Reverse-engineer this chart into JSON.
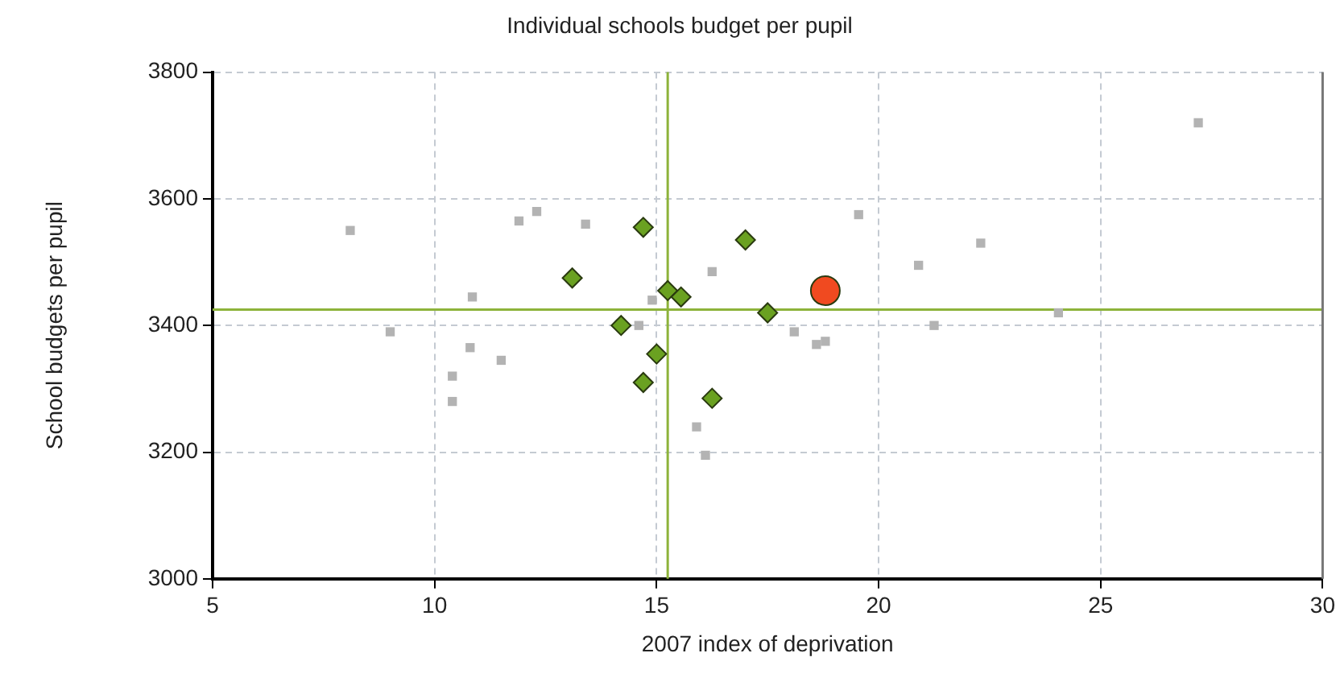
{
  "chart_data": {
    "type": "scatter",
    "title": "Individual schools budget per pupil",
    "xlabel": "2007 index of deprivation",
    "ylabel": "School budgets per pupil",
    "xlim": [
      5,
      30
    ],
    "xticks": [
      5,
      10,
      15,
      20,
      25,
      30
    ],
    "ylim": [
      3000,
      3800
    ],
    "yticks": [
      3000,
      3200,
      3400,
      3600,
      3800
    ],
    "grid": true,
    "legend": false,
    "series": [
      {
        "color": "#b3b3b3",
        "marker": "square",
        "x": [
          8.1,
          9.0,
          11.9,
          12.3,
          13.4,
          10.85,
          10.8,
          11.5,
          10.4,
          10.4,
          14.9,
          14.6,
          16.25,
          19.55,
          18.1,
          18.6,
          18.8,
          15.9,
          16.1,
          20.9,
          21.25,
          22.3,
          24.05,
          27.2
        ],
        "values": [
          3550,
          3390,
          3565,
          3580,
          3560,
          3445,
          3365,
          3345,
          3320,
          3280,
          3440,
          3400,
          3485,
          3575,
          3390,
          3370,
          3375,
          3240,
          3195,
          3495,
          3400,
          3530,
          3420,
          3720
        ]
      },
      {
        "color": "#6aa121",
        "marker": "diamond",
        "x": [
          14.7,
          13.1,
          17.0,
          15.25,
          15.55,
          17.5,
          14.2,
          15.0,
          14.7,
          16.25
        ],
        "values": [
          3555,
          3475,
          3535,
          3455,
          3445,
          3420,
          3400,
          3355,
          3310,
          3285
        ]
      },
      {
        "color": "#f04a20",
        "marker": "circle",
        "x": [
          18.8
        ],
        "values": [
          3455
        ]
      }
    ],
    "ref_lines": [
      {
        "axis": "y",
        "value": 3425,
        "color": "#8db33a"
      },
      {
        "axis": "x",
        "value": 15.25,
        "color": "#8db33a"
      }
    ]
  }
}
